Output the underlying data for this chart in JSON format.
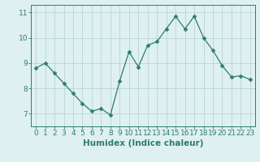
{
  "x": [
    0,
    1,
    2,
    3,
    4,
    5,
    6,
    7,
    8,
    9,
    10,
    11,
    12,
    13,
    14,
    15,
    16,
    17,
    18,
    19,
    20,
    21,
    22,
    23
  ],
  "y": [
    8.8,
    9.0,
    8.6,
    8.2,
    7.8,
    7.4,
    7.1,
    7.2,
    6.95,
    8.3,
    9.45,
    8.85,
    9.7,
    9.85,
    10.35,
    10.85,
    10.35,
    10.85,
    10.0,
    9.5,
    8.9,
    8.45,
    8.5,
    8.35
  ],
  "line_color": "#2d7d6e",
  "marker": "D",
  "marker_size": 2.5,
  "bg_color": "#dff0f0",
  "grid_color": "#b8d4d4",
  "xlabel": "Humidex (Indice chaleur)",
  "ylim": [
    6.5,
    11.3
  ],
  "xlim": [
    -0.5,
    23.5
  ],
  "yticks": [
    7,
    8,
    9,
    10,
    11
  ],
  "xticks": [
    0,
    1,
    2,
    3,
    4,
    5,
    6,
    7,
    8,
    9,
    10,
    11,
    12,
    13,
    14,
    15,
    16,
    17,
    18,
    19,
    20,
    21,
    22,
    23
  ],
  "tick_color": "#2d7d6e",
  "xlabel_color": "#2d7d6e",
  "xlabel_fontsize": 7.5,
  "tick_fontsize": 6.5
}
